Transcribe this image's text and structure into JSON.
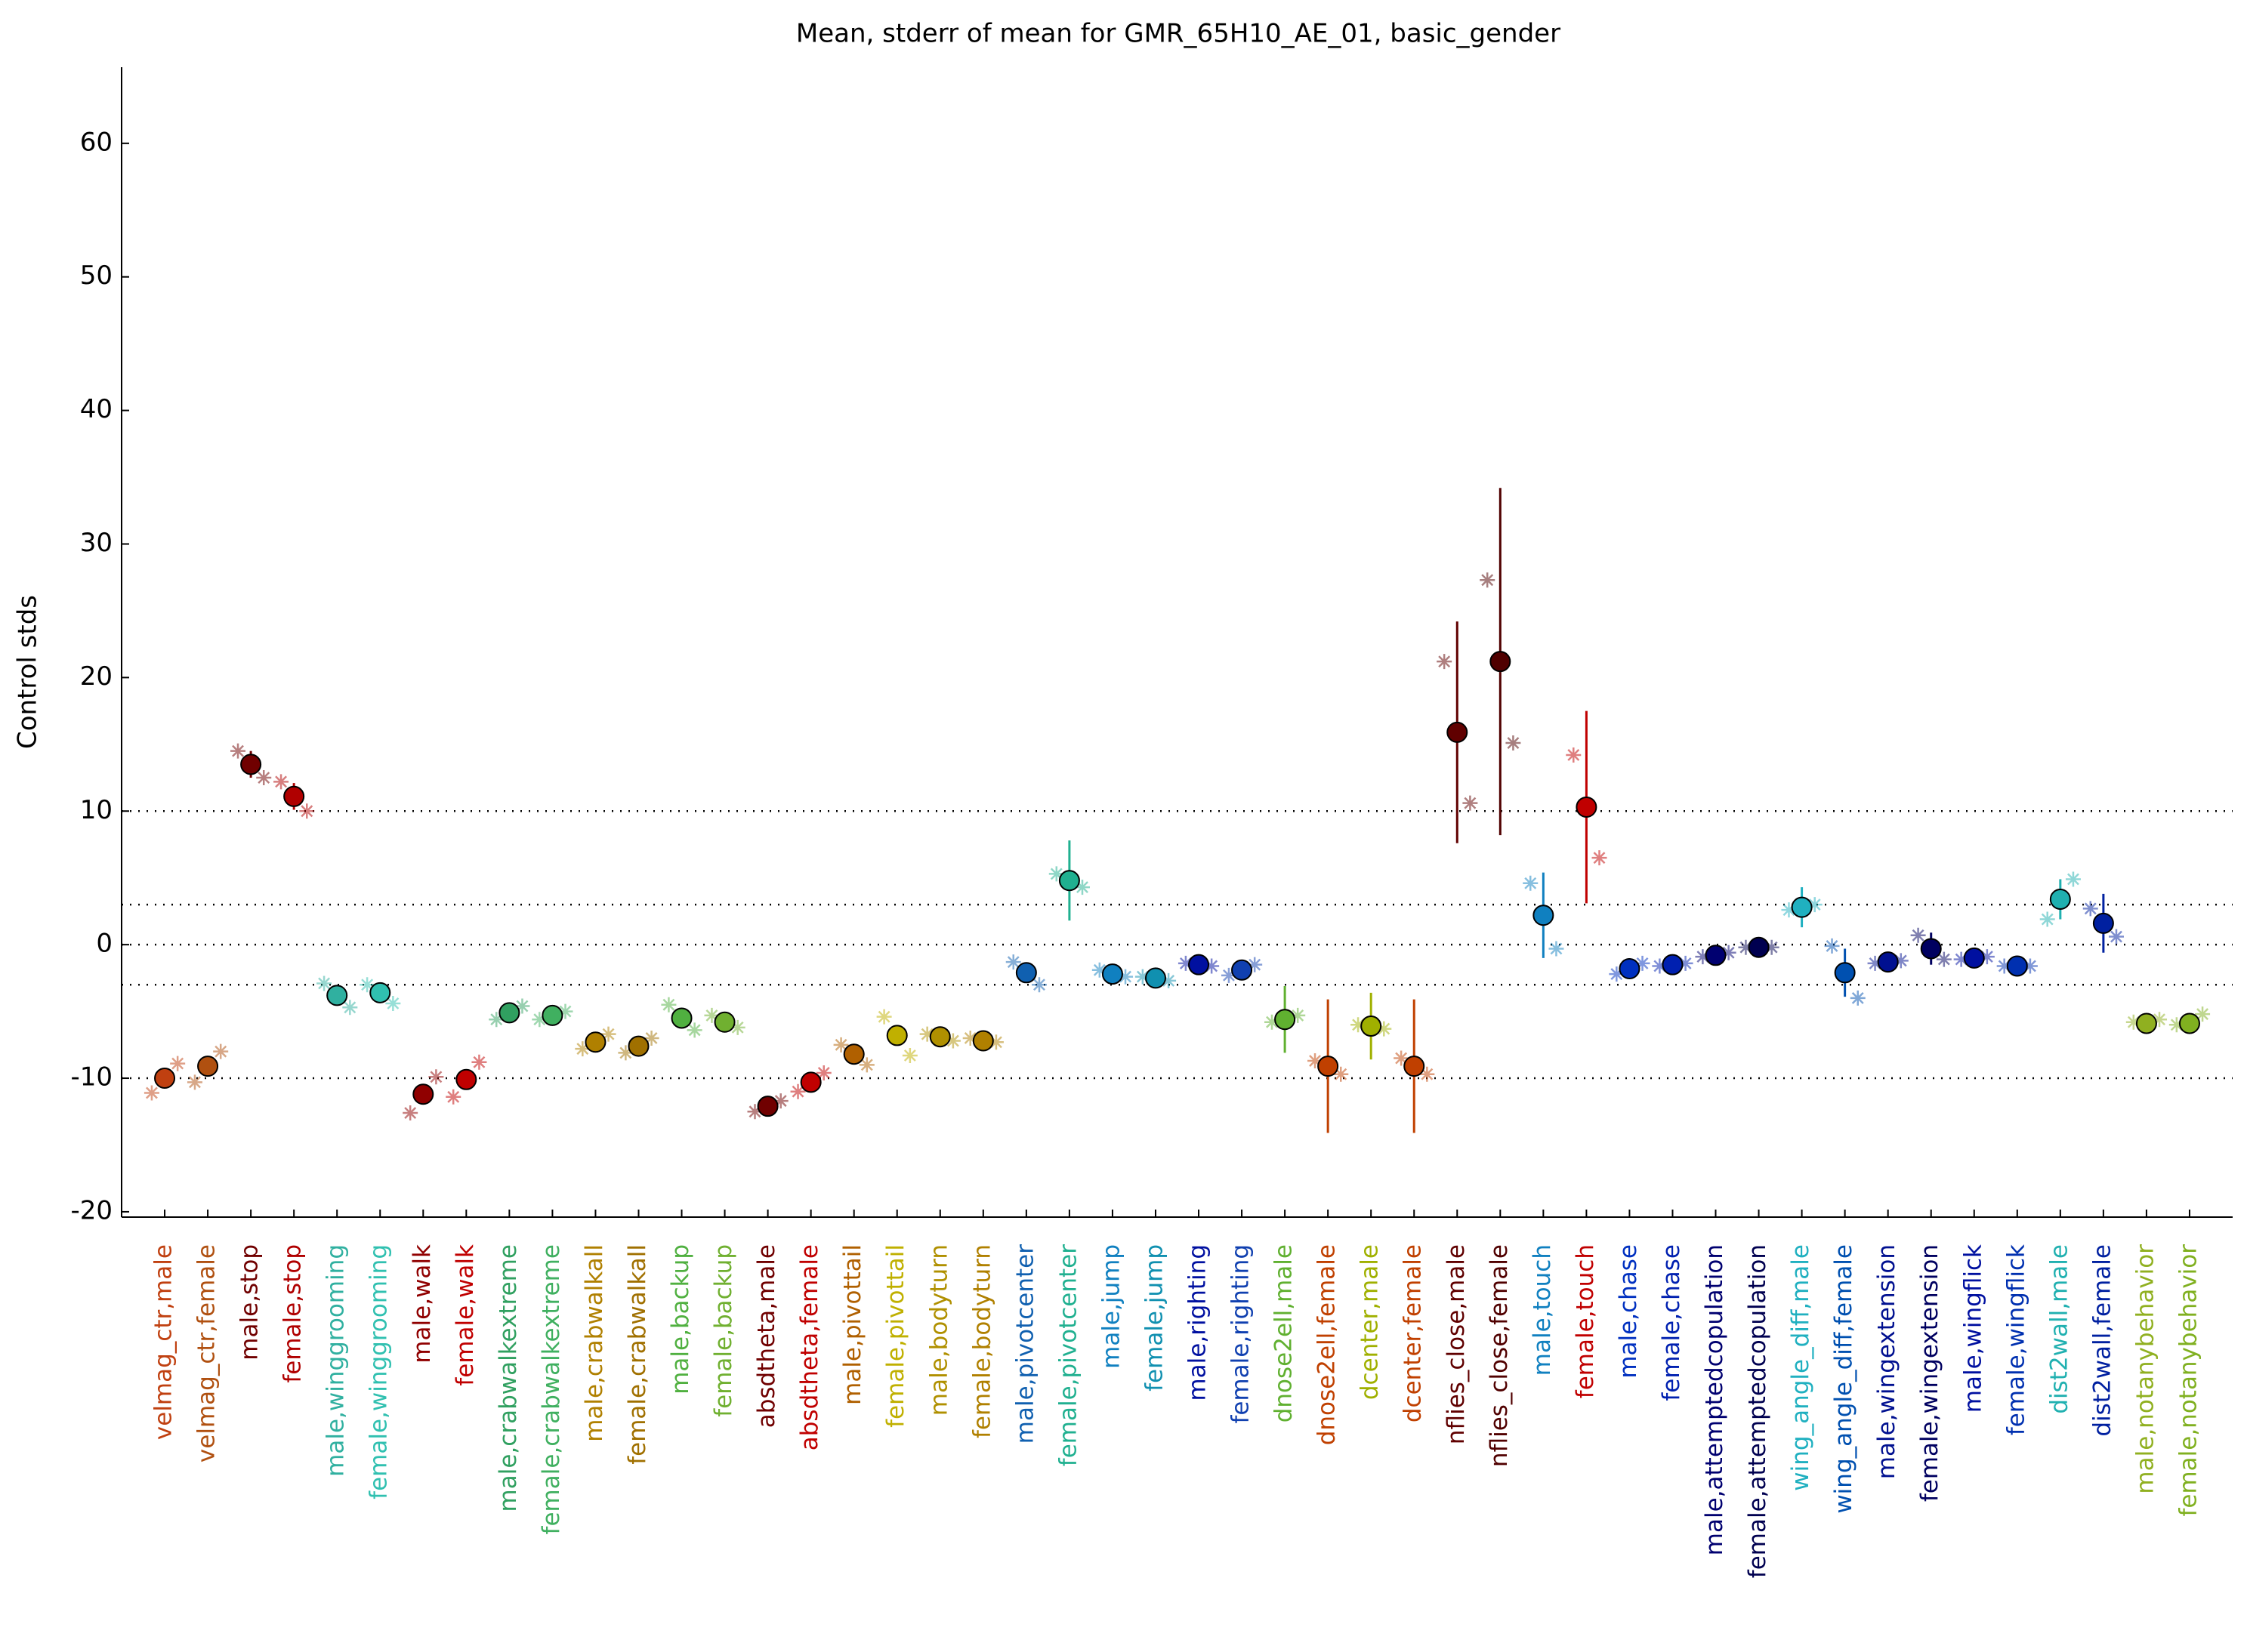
{
  "chart_data": {
    "type": "errorbar",
    "title": "Mean, stderr of mean for GMR_65H10_AE_01, basic_gender",
    "y_label": "Control stds",
    "categories": [
      "velmag_ctr,male",
      "velmag_ctr,female",
      "male,stop",
      "female,stop",
      "male,winggrooming",
      "female,winggrooming",
      "male,walk",
      "female,walk",
      "male,crabwalkextreme",
      "female,crabwalkextreme",
      "male,crabwalkall",
      "female,crabwalkall",
      "male,backup",
      "female,backup",
      "absdtheta,male",
      "absdtheta,female",
      "male,pivottail",
      "female,pivottail",
      "male,bodyturn",
      "female,bodyturn",
      "male,pivotcenter",
      "female,pivotcenter",
      "male,jump",
      "female,jump",
      "male,righting",
      "female,righting",
      "dnose2ell,male",
      "dnose2ell,female",
      "dcenter,male",
      "dcenter,female",
      "nflies_close,male",
      "nflies_close,female",
      "male,touch",
      "female,touch",
      "male,chase",
      "female,chase",
      "male,attemptedcopulation",
      "female,attemptedcopulation",
      "wing_angle_diff,male",
      "wing_angle_diff,female",
      "male,wingextension",
      "female,wingextension",
      "male,wingflick",
      "female,wingflick",
      "dist2wall,male",
      "dist2wall,female",
      "male,notanybehavior",
      "female,notanybehavior"
    ],
    "values": [
      -10,
      -9.1,
      13.5,
      11.1,
      -3.8,
      -3.6,
      -11.2,
      -10.1,
      -5.1,
      -5.3,
      -7.3,
      -7.6,
      -5.5,
      -5.8,
      -12.1,
      -10.3,
      -8.2,
      -6.8,
      -6.9,
      -7.2,
      -2.1,
      4.8,
      -2.2,
      -2.5,
      -1.5,
      -1.9,
      -5.6,
      -9.1,
      -6.1,
      -9.1,
      15.9,
      21.2,
      2.2,
      10.3,
      -1.8,
      -1.5,
      -0.8,
      -0.2,
      2.8,
      -2.1,
      -1.3,
      -0.3,
      -1,
      -1.6,
      3.4,
      1.6,
      -5.9,
      -5.9
    ],
    "errors": [
      0.3,
      0.3,
      1,
      1,
      0.3,
      0.3,
      0.3,
      0.5,
      0.3,
      0.3,
      0.3,
      0.3,
      0.3,
      0.3,
      0.3,
      0.3,
      0.3,
      0.3,
      0.3,
      0.3,
      0.3,
      3,
      0.3,
      0.3,
      0.3,
      0.3,
      2.5,
      5,
      2.5,
      5,
      8.3,
      13,
      3.2,
      7.2,
      0.3,
      0.3,
      0.3,
      0.3,
      1.5,
      1.8,
      0.3,
      1.2,
      0.3,
      0.3,
      1.5,
      2.2,
      0.3,
      0.3
    ],
    "experiments": [
      [
        -11.1,
        -8.9
      ],
      [
        -10.3,
        -8
      ],
      [
        14.5,
        12.5
      ],
      [
        12.2,
        10
      ],
      [
        -2.9,
        -4.7
      ],
      [
        -3,
        -4.4
      ],
      [
        -12.6,
        -9.9
      ],
      [
        -11.4,
        -8.8
      ],
      [
        -5.6,
        -4.6
      ],
      [
        -5.6,
        -5
      ],
      [
        -7.8,
        -6.7
      ],
      [
        -8.1,
        -7
      ],
      [
        -4.5,
        -6.4
      ],
      [
        -5.3,
        -6.2
      ],
      [
        -12.5,
        -11.7
      ],
      [
        -11,
        -9.6
      ],
      [
        -7.5,
        -9
      ],
      [
        -5.4,
        -8.3
      ],
      [
        -6.7,
        -7.2
      ],
      [
        -7,
        -7.3
      ],
      [
        -1.3,
        -3
      ],
      [
        5.3,
        4.3
      ],
      [
        -1.9,
        -2.4
      ],
      [
        -2.4,
        -2.7
      ],
      [
        -1.4,
        -1.6
      ],
      [
        -2.3,
        -1.5
      ],
      [
        -5.8,
        -5.3
      ],
      [
        -8.7,
        -9.7
      ],
      [
        -6,
        -6.3
      ],
      [
        -8.5,
        -9.7
      ],
      [
        21.2,
        10.6
      ],
      [
        27.3,
        15.1
      ],
      [
        4.6,
        -0.3
      ],
      [
        14.2,
        6.5
      ],
      [
        -2.2,
        -1.4
      ],
      [
        -1.6,
        -1.4
      ],
      [
        -0.9,
        -0.6
      ],
      [
        -0.2,
        -0.2
      ],
      [
        2.6,
        3
      ],
      [
        -0.1,
        -4
      ],
      [
        -1.4,
        -1.2
      ],
      [
        0.7,
        -1.1
      ],
      [
        -1.1,
        -0.9
      ],
      [
        -1.6,
        -1.6
      ],
      [
        1.9,
        4.9
      ],
      [
        2.7,
        0.6
      ],
      [
        -5.8,
        -5.6
      ],
      [
        -6,
        -5.2
      ]
    ],
    "colors": [
      "#c04010",
      "#b05010",
      "#700000",
      "#b00000",
      "#30b0a0",
      "#30c0b0",
      "#900000",
      "#c00000",
      "#30a060",
      "#40b060",
      "#b08000",
      "#a07000",
      "#50b040",
      "#70b030",
      "#700000",
      "#c00000",
      "#b06000",
      "#c0b000",
      "#b09000",
      "#b08000",
      "#1060b0",
      "#20b090",
      "#1080c0",
      "#1090b0",
      "#0010a0",
      "#1040b0",
      "#60b030",
      "#c04000",
      "#a0b000",
      "#c04000",
      "#600000",
      "#500000",
      "#1080c0",
      "#c00000",
      "#0030c0",
      "#0020b0",
      "#000070",
      "#000050",
      "#20b0c0",
      "#0050b0",
      "#001090",
      "#000060",
      "#0010a0",
      "#0030b0",
      "#20b0b0",
      "#0020a0",
      "#90b020",
      "#80b020"
    ],
    "ylim": [
      -20.4,
      65.7
    ],
    "yticks": [
      -20,
      -10,
      0,
      10,
      20,
      30,
      40,
      50,
      60
    ],
    "reference_lines": [
      10,
      3,
      0,
      -3,
      -10
    ]
  }
}
